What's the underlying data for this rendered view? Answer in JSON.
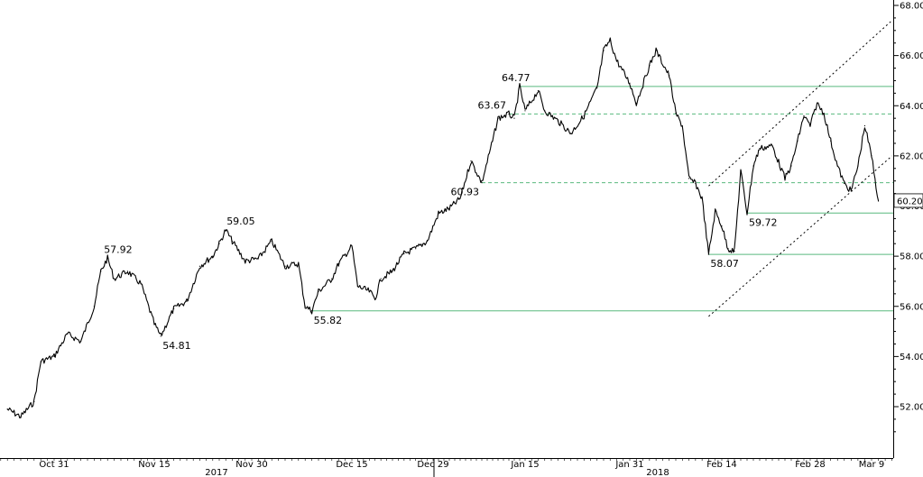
{
  "chart_data": {
    "type": "line",
    "title": "",
    "xlabel": "",
    "ylabel": "",
    "ylim": [
      50.2,
      68
    ],
    "grid": false,
    "y_axis_side": "right",
    "x_ticks": [
      "Oct 31",
      "Nov 15",
      "Nov 30",
      "Dec 15",
      "Dec 29",
      "Jan 15",
      "Jan 31",
      "Feb 14",
      "Feb 28",
      "Mar 9"
    ],
    "x_years": [
      "2017",
      "2018"
    ],
    "y_ticks": [
      "52.00",
      "54.00",
      "56.00",
      "58.00",
      "60.00",
      "62.00",
      "64.00",
      "66.00",
      "68.00"
    ],
    "last_value_label": "60.20",
    "series": [
      {
        "values": [
          {
            "x": "Oct 24",
            "y": 51.9
          },
          {
            "x": "Oct 26",
            "y": 51.6
          },
          {
            "x": "Oct 28",
            "y": 52.2
          },
          {
            "x": "Oct 29",
            "y": 53.8
          },
          {
            "x": "Oct 31",
            "y": 54.0
          },
          {
            "x": "Nov 2",
            "y": 54.9
          },
          {
            "x": "Nov 4",
            "y": 54.6
          },
          {
            "x": "Nov 6",
            "y": 56.0
          },
          {
            "x": "Nov 7",
            "y": 57.4
          },
          {
            "x": "Nov 8",
            "y": 57.92
          },
          {
            "x": "Nov 9",
            "y": 57.1
          },
          {
            "x": "Nov 11",
            "y": 57.4
          },
          {
            "x": "Nov 13",
            "y": 56.9
          },
          {
            "x": "Nov 15",
            "y": 55.3
          },
          {
            "x": "Nov 16",
            "y": 54.81
          },
          {
            "x": "Nov 18",
            "y": 55.9
          },
          {
            "x": "Nov 20",
            "y": 56.2
          },
          {
            "x": "Nov 22",
            "y": 57.6
          },
          {
            "x": "Nov 24",
            "y": 58.0
          },
          {
            "x": "Nov 25",
            "y": 58.5
          },
          {
            "x": "Nov 26",
            "y": 59.05
          },
          {
            "x": "Nov 27",
            "y": 58.6
          },
          {
            "x": "Nov 29",
            "y": 57.8
          },
          {
            "x": "Dec 1",
            "y": 57.9
          },
          {
            "x": "Dec 3",
            "y": 58.6
          },
          {
            "x": "Dec 5",
            "y": 57.6
          },
          {
            "x": "Dec 7",
            "y": 57.7
          },
          {
            "x": "Dec 8",
            "y": 56.0
          },
          {
            "x": "Dec 9",
            "y": 55.82
          },
          {
            "x": "Dec 10",
            "y": 56.6
          },
          {
            "x": "Dec 12",
            "y": 57.1
          },
          {
            "x": "Dec 13",
            "y": 57.7
          },
          {
            "x": "Dec 15",
            "y": 58.4
          },
          {
            "x": "Dec 16",
            "y": 56.8
          },
          {
            "x": "Dec 18",
            "y": 56.6
          },
          {
            "x": "Dec 19",
            "y": 56.3
          },
          {
            "x": "Dec 20",
            "y": 57.1
          },
          {
            "x": "Dec 22",
            "y": 57.4
          },
          {
            "x": "Dec 24",
            "y": 58.1
          },
          {
            "x": "Dec 26",
            "y": 58.3
          },
          {
            "x": "Dec 28",
            "y": 58.6
          },
          {
            "x": "Dec 30",
            "y": 59.7
          },
          {
            "x": "Jan 1",
            "y": 59.9
          },
          {
            "x": "Jan 3",
            "y": 60.3
          },
          {
            "x": "Jan 5",
            "y": 61.8
          },
          {
            "x": "Jan 7",
            "y": 60.93
          },
          {
            "x": "Jan 9",
            "y": 62.6
          },
          {
            "x": "Jan 10",
            "y": 63.5
          },
          {
            "x": "Jan 12",
            "y": 63.67
          },
          {
            "x": "Jan 13",
            "y": 63.5
          },
          {
            "x": "Jan 14",
            "y": 64.77
          },
          {
            "x": "Jan 15",
            "y": 63.8
          },
          {
            "x": "Jan 17",
            "y": 64.6
          },
          {
            "x": "Jan 18",
            "y": 63.8
          },
          {
            "x": "Jan 20",
            "y": 63.4
          },
          {
            "x": "Jan 22",
            "y": 62.9
          },
          {
            "x": "Jan 24",
            "y": 63.6
          },
          {
            "x": "Jan 26",
            "y": 64.7
          },
          {
            "x": "Jan 27",
            "y": 66.2
          },
          {
            "x": "Jan 28",
            "y": 66.6
          },
          {
            "x": "Jan 29",
            "y": 65.8
          },
          {
            "x": "Jan 31",
            "y": 64.9
          },
          {
            "x": "Feb 1",
            "y": 64.1
          },
          {
            "x": "Feb 3",
            "y": 65.6
          },
          {
            "x": "Feb 4",
            "y": 66.2
          },
          {
            "x": "Feb 6",
            "y": 65.2
          },
          {
            "x": "Feb 7",
            "y": 63.7
          },
          {
            "x": "Feb 8",
            "y": 63.2
          },
          {
            "x": "Feb 9",
            "y": 61.1
          },
          {
            "x": "Feb 10",
            "y": 60.9
          },
          {
            "x": "Feb 11",
            "y": 60.3
          },
          {
            "x": "Feb 12",
            "y": 58.07
          },
          {
            "x": "Feb 13",
            "y": 59.8
          },
          {
            "x": "Feb 14",
            "y": 59.2
          },
          {
            "x": "Feb 15",
            "y": 58.3
          },
          {
            "x": "Feb 16",
            "y": 58.2
          },
          {
            "x": "Feb 17",
            "y": 61.4
          },
          {
            "x": "Feb 18",
            "y": 59.72
          },
          {
            "x": "Feb 19",
            "y": 61.6
          },
          {
            "x": "Feb 20",
            "y": 62.3
          },
          {
            "x": "Feb 22",
            "y": 62.4
          },
          {
            "x": "Feb 24",
            "y": 61.1
          },
          {
            "x": "Feb 25",
            "y": 61.6
          },
          {
            "x": "Feb 26",
            "y": 62.6
          },
          {
            "x": "Feb 27",
            "y": 63.6
          },
          {
            "x": "Feb 28",
            "y": 63.2
          },
          {
            "x": "Mar 1",
            "y": 64.1
          },
          {
            "x": "Mar 2",
            "y": 63.7
          },
          {
            "x": "Mar 3",
            "y": 62.6
          },
          {
            "x": "Mar 4",
            "y": 61.6
          },
          {
            "x": "Mar 5",
            "y": 60.9
          },
          {
            "x": "Mar 6",
            "y": 60.6
          },
          {
            "x": "Mar 7",
            "y": 61.6
          },
          {
            "x": "Mar 8",
            "y": 63.2
          },
          {
            "x": "Mar 9",
            "y": 62.0
          },
          {
            "x": "Mar 10",
            "y": 60.2
          }
        ]
      }
    ],
    "horizontal_levels": [
      {
        "value": 64.77,
        "style": "solid",
        "start_x": "Jan 14"
      },
      {
        "value": 63.67,
        "style": "dashed",
        "start_x": "Jan 12"
      },
      {
        "value": 60.93,
        "style": "dashed",
        "start_x": "Jan 7"
      },
      {
        "value": 59.72,
        "style": "solid",
        "start_x": "Feb 18"
      },
      {
        "value": 58.07,
        "style": "solid",
        "start_x": "Feb 12"
      },
      {
        "value": 55.82,
        "style": "solid",
        "start_x": "Dec 9"
      }
    ],
    "trend_channel": [
      {
        "from": {
          "x": "Feb 12",
          "y": 60.8
        },
        "to": {
          "x": "Mar 12",
          "y": 67.4
        }
      },
      {
        "from": {
          "x": "Feb 12",
          "y": 55.6
        },
        "to": {
          "x": "Mar 12",
          "y": 62.0
        }
      }
    ],
    "annotations": [
      {
        "text": "57.92",
        "x": "Nov 8",
        "y": 57.92
      },
      {
        "text": "54.81",
        "x": "Nov 16",
        "y": 54.81
      },
      {
        "text": "59.05",
        "x": "Nov 26",
        "y": 59.05
      },
      {
        "text": "55.82",
        "x": "Dec 9",
        "y": 55.82
      },
      {
        "text": "60.93",
        "x": "Jan 7",
        "y": 60.93
      },
      {
        "text": "63.67",
        "x": "Jan 12",
        "y": 63.67
      },
      {
        "text": "64.77",
        "x": "Jan 14",
        "y": 64.77
      },
      {
        "text": "58.07",
        "x": "Feb 12",
        "y": 58.07
      },
      {
        "text": "59.72",
        "x": "Feb 18",
        "y": 59.72
      }
    ],
    "colors": {
      "line": "#000000",
      "levels": "#59b97f",
      "channel": "#000000",
      "axis": "#000000"
    }
  }
}
